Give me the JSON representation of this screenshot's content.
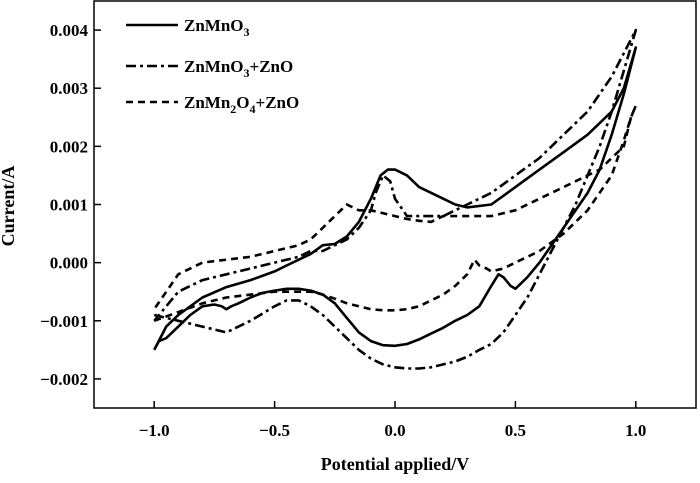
{
  "chart_data": {
    "type": "line",
    "title": "",
    "xlabel": "Potential applied/V",
    "ylabel": "Current/A",
    "xlim": [
      -1.25,
      1.25
    ],
    "ylim": [
      -0.0025,
      0.0045
    ],
    "xticks": [
      -1.0,
      -0.5,
      0.0,
      0.5,
      1.0
    ],
    "xtick_labels": [
      "−1.0",
      "−0.5",
      "0.0",
      "0.5",
      "1.0"
    ],
    "yticks": [
      -0.002,
      -0.001,
      0.0,
      0.001,
      0.002,
      0.003,
      0.004
    ],
    "ytick_labels": [
      "−0.002",
      "−0.001",
      "0.000",
      "0.001",
      "0.002",
      "0.003",
      "0.004"
    ],
    "grid": false,
    "legend_position": "top-left",
    "series": [
      {
        "name": "ZnMnO3",
        "legend_main": "ZnMnO",
        "legend_parts": [
          [
            "ZnMnO",
            ""
          ],
          [
            "3",
            "sub"
          ]
        ],
        "style": "solid",
        "color": "#000000",
        "x": [
          -1.0,
          -0.98,
          -0.95,
          -0.9,
          -0.85,
          -0.8,
          -0.75,
          -0.72,
          -0.7,
          -0.68,
          -0.65,
          -0.6,
          -0.55,
          -0.5,
          -0.45,
          -0.4,
          -0.35,
          -0.3,
          -0.25,
          -0.2,
          -0.15,
          -0.1,
          -0.05,
          0.0,
          0.05,
          0.1,
          0.15,
          0.2,
          0.25,
          0.3,
          0.35,
          0.4,
          0.43,
          0.45,
          0.48,
          0.5,
          0.55,
          0.6,
          0.65,
          0.7,
          0.75,
          0.8,
          0.85,
          0.9,
          0.95,
          1.0,
          1.0,
          0.95,
          0.9,
          0.85,
          0.8,
          0.7,
          0.6,
          0.5,
          0.4,
          0.3,
          0.25,
          0.2,
          0.1,
          0.05,
          0.0,
          -0.03,
          -0.06,
          -0.1,
          -0.15,
          -0.2,
          -0.25,
          -0.3,
          -0.35,
          -0.4,
          -0.45,
          -0.5,
          -0.6,
          -0.7,
          -0.8,
          -0.9,
          -0.95,
          -1.0
        ],
        "y": [
          -0.0015,
          -0.00135,
          -0.0013,
          -0.0011,
          -0.0009,
          -0.00075,
          -0.00072,
          -0.00075,
          -0.0008,
          -0.00075,
          -0.0007,
          -0.0006,
          -0.00052,
          -0.00048,
          -0.00045,
          -0.00045,
          -0.00048,
          -0.00055,
          -0.0007,
          -0.00095,
          -0.0012,
          -0.00135,
          -0.00142,
          -0.00143,
          -0.0014,
          -0.00132,
          -0.00122,
          -0.00112,
          -0.001,
          -0.0009,
          -0.00075,
          -0.0004,
          -0.0002,
          -0.00025,
          -0.0004,
          -0.00045,
          -0.00025,
          0.0,
          0.0003,
          0.0006,
          0.0009,
          0.0012,
          0.0016,
          0.0022,
          0.0029,
          0.0037,
          0.0037,
          0.003,
          0.0026,
          0.0024,
          0.0022,
          0.0019,
          0.0016,
          0.0013,
          0.001,
          0.00095,
          0.001,
          0.0011,
          0.0013,
          0.0015,
          0.0016,
          0.0016,
          0.0015,
          0.0011,
          0.0007,
          0.00045,
          0.00032,
          0.0003,
          0.00015,
          5e-05,
          -5e-05,
          -0.00015,
          -0.0003,
          -0.00042,
          -0.0006,
          -0.0009,
          -0.0011,
          -0.0015
        ]
      },
      {
        "name": "ZnMnO3+ZnO",
        "legend_main": "ZnMnO",
        "legend_parts": [
          [
            "ZnMnO",
            ""
          ],
          [
            "3",
            "sub"
          ],
          [
            "+ZnO",
            ""
          ]
        ],
        "style": "dashdot",
        "color": "#000000",
        "x": [
          -1.0,
          -0.9,
          -0.8,
          -0.7,
          -0.6,
          -0.5,
          -0.45,
          -0.4,
          -0.35,
          -0.3,
          -0.25,
          -0.2,
          -0.15,
          -0.1,
          -0.05,
          0.0,
          0.05,
          0.1,
          0.15,
          0.2,
          0.25,
          0.3,
          0.35,
          0.4,
          0.45,
          0.5,
          0.55,
          0.6,
          0.65,
          0.7,
          0.75,
          0.8,
          0.85,
          0.9,
          0.95,
          1.0,
          1.0,
          0.9,
          0.8,
          0.7,
          0.6,
          0.5,
          0.4,
          0.3,
          0.2,
          0.1,
          0.05,
          0.0,
          -0.02,
          -0.05,
          -0.08,
          -0.1,
          -0.15,
          -0.2,
          -0.25,
          -0.3,
          -0.35,
          -0.4,
          -0.5,
          -0.6,
          -0.7,
          -0.8,
          -0.9,
          -1.0
        ],
        "y": [
          -0.0009,
          -0.001,
          -0.0011,
          -0.0012,
          -0.001,
          -0.00075,
          -0.00065,
          -0.00065,
          -0.00075,
          -0.0009,
          -0.0011,
          -0.0013,
          -0.0015,
          -0.00165,
          -0.00175,
          -0.0018,
          -0.00182,
          -0.00182,
          -0.0018,
          -0.00175,
          -0.0017,
          -0.00162,
          -0.0015,
          -0.0014,
          -0.0012,
          -0.0009,
          -0.0006,
          -0.0002,
          0.0002,
          0.0006,
          0.001,
          0.0015,
          0.002,
          0.0026,
          0.0033,
          0.004,
          0.004,
          0.0032,
          0.0026,
          0.0022,
          0.0018,
          0.0015,
          0.0012,
          0.001,
          0.0008,
          0.0008,
          0.0008,
          0.0011,
          0.0014,
          0.0015,
          0.0012,
          0.0009,
          0.0006,
          0.0004,
          0.0003,
          0.0002,
          0.0002,
          0.0001,
          0.0,
          -0.0001,
          -0.0002,
          -0.0003,
          -0.0005,
          -0.001
        ]
      },
      {
        "name": "ZnMn2O4+ZnO",
        "legend_main": "ZnMn",
        "legend_parts": [
          [
            "ZnMn",
            ""
          ],
          [
            "2",
            "sub"
          ],
          [
            "O",
            ""
          ],
          [
            "4",
            "sub"
          ],
          [
            "+ZnO",
            ""
          ]
        ],
        "style": "dashed",
        "color": "#000000",
        "x": [
          -1.0,
          -0.9,
          -0.8,
          -0.7,
          -0.6,
          -0.5,
          -0.45,
          -0.4,
          -0.35,
          -0.3,
          -0.25,
          -0.2,
          -0.15,
          -0.1,
          -0.05,
          0.0,
          0.05,
          0.1,
          0.15,
          0.2,
          0.25,
          0.3,
          0.33,
          0.35,
          0.38,
          0.4,
          0.45,
          0.5,
          0.6,
          0.7,
          0.8,
          0.9,
          0.95,
          0.98,
          1.0,
          1.0,
          0.98,
          0.95,
          0.9,
          0.85,
          0.8,
          0.7,
          0.6,
          0.5,
          0.4,
          0.3,
          0.2,
          0.15,
          0.1,
          0.05,
          0.0,
          -0.05,
          -0.1,
          -0.15,
          -0.2,
          -0.25,
          -0.3,
          -0.35,
          -0.4,
          -0.5,
          -0.6,
          -0.7,
          -0.8,
          -0.9,
          -1.0
        ],
        "y": [
          -0.001,
          -0.00085,
          -0.0007,
          -0.0006,
          -0.00055,
          -0.0005,
          -0.0005,
          -0.0005,
          -0.0005,
          -0.00055,
          -0.00062,
          -0.0007,
          -0.00075,
          -0.0008,
          -0.00082,
          -0.00082,
          -0.0008,
          -0.00075,
          -0.00065,
          -0.00055,
          -0.0004,
          -0.0002,
          5e-05,
          -5e-05,
          -0.0001,
          -0.00015,
          -0.0001,
          0.0,
          0.0002,
          0.0005,
          0.0009,
          0.0015,
          0.0021,
          0.0025,
          0.0027,
          0.0027,
          0.0025,
          0.002,
          0.0018,
          0.0016,
          0.0015,
          0.0013,
          0.0011,
          0.0009,
          0.0008,
          0.0008,
          0.0008,
          0.0007,
          0.00072,
          0.00075,
          0.0008,
          0.00085,
          0.0009,
          0.0009,
          0.001,
          0.0008,
          0.0006,
          0.0004,
          0.0003,
          0.0002,
          0.0001,
          5e-05,
          0.0,
          -0.0002,
          -0.0008
        ]
      }
    ]
  }
}
